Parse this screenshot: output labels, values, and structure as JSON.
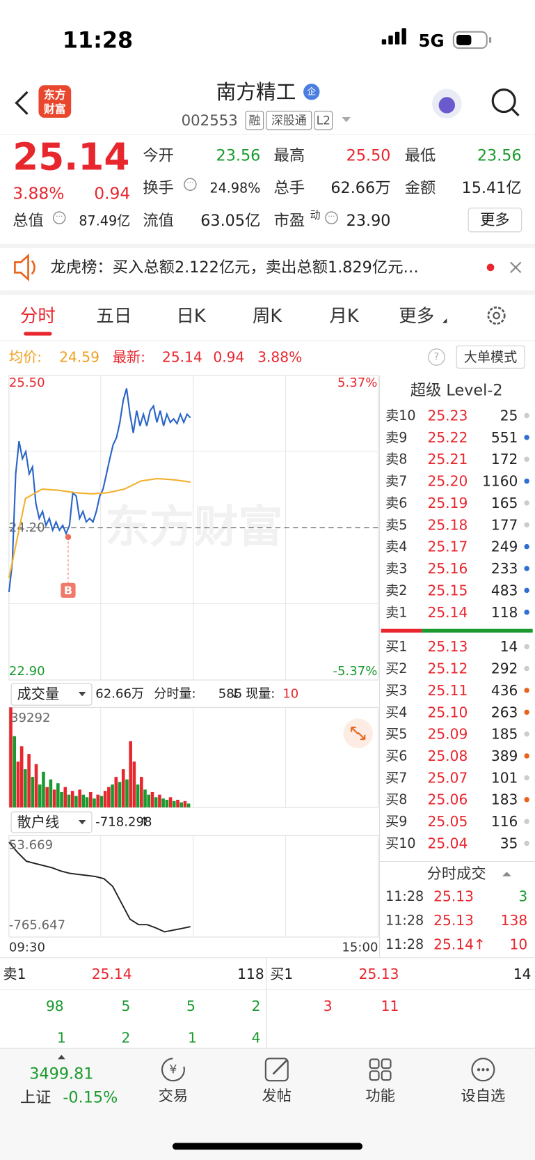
{
  "status": {
    "time": "11:28",
    "network": "5G"
  },
  "header": {
    "logo": [
      "东方",
      "财富"
    ],
    "title": "南方精工",
    "badge": "企",
    "code": "002553",
    "tags": [
      "融",
      "深股通",
      "L2"
    ]
  },
  "quote": {
    "price": "25.14",
    "change_pct": "3.88%",
    "change": "0.94",
    "more": "更多",
    "fields": [
      {
        "label": "今开",
        "value": "23.56"
      },
      {
        "label": "最高",
        "value": "25.50"
      },
      {
        "label": "最低",
        "value": "23.56"
      },
      {
        "label": "换手",
        "value": "24.98%"
      },
      {
        "label": "总手",
        "value": "62.66万"
      },
      {
        "label": "金额",
        "value": "15.41亿"
      },
      {
        "label": "总值",
        "value": "87.49亿"
      },
      {
        "label": "流值",
        "value": "63.05亿"
      },
      {
        "label": "市盈",
        "sup": "动",
        "value": "23.90"
      }
    ]
  },
  "news": {
    "text": "龙虎榜：买入总额2.122亿元，卖出总额1.829亿元…"
  },
  "tabs": [
    "分时",
    "五日",
    "日K",
    "周K",
    "月K",
    "更多"
  ],
  "info": {
    "avg_label": "均价:",
    "avg": "24.59",
    "last_label": "最新:",
    "last": "25.14",
    "change": "0.94",
    "pct": "3.88%",
    "mode": "大单模式"
  },
  "marker": "B",
  "watermark": "东方财富",
  "chart_data": [
    {
      "type": "line",
      "ylim": [
        22.9,
        25.5
      ],
      "yticks": [
        {
          "value": 25.5,
          "label": "25.50"
        },
        {
          "value": 24.2,
          "label": "24.20"
        },
        {
          "value": 22.9,
          "label": "22.90"
        }
      ],
      "y2lim": [
        -5.37,
        5.37
      ],
      "y2ticks": [
        {
          "value": 5.37,
          "label": "5.37%"
        },
        {
          "value": -5.37,
          "label": "-5.37%"
        }
      ],
      "xticks": [
        "09:30",
        "15:00"
      ],
      "series": [
        {
          "color": "#2a64c8",
          "values": [
            23.65,
            23.9,
            24.66,
            24.94,
            24.79,
            24.85,
            24.66,
            24.72,
            24.41,
            24.28,
            24.34,
            24.22,
            24.28,
            24.18,
            24.25,
            24.18,
            24.22,
            24.15,
            24.22,
            24.5,
            24.47,
            24.28,
            24.34,
            24.25,
            24.28,
            24.25,
            24.34,
            24.47,
            24.53,
            24.66,
            24.79,
            24.91,
            24.97,
            25.1,
            25.29,
            25.39,
            25.17,
            25.01,
            25.2,
            25.07,
            25.17,
            25.07,
            25.2,
            25.24,
            25.1,
            25.2,
            25.07,
            25.17,
            25.1,
            25.13,
            25.09,
            25.17,
            25.1,
            25.17,
            25.14
          ]
        },
        {
          "color": "#f2b02e",
          "values": [
            23.77,
            24.45,
            24.53,
            24.52,
            24.5,
            24.49,
            24.5,
            24.53,
            24.6,
            24.62,
            24.61,
            24.59
          ]
        }
      ]
    },
    {
      "type": "bar",
      "title": "成交量",
      "total": "62.66万",
      "period_label": "分时量:",
      "period": "585",
      "period_arrow": "↓",
      "now_label": "现量:",
      "now": "10",
      "ylim": [
        0,
        39292
      ],
      "yticks": [
        39292
      ],
      "values": [
        39292,
        28000,
        18000,
        24000,
        15000,
        21000,
        12000,
        17000,
        9000,
        14000,
        8000,
        11000,
        7000,
        9500,
        6000,
        8000,
        5000,
        6500,
        4500,
        7000,
        5000,
        4000,
        6000,
        3500,
        5000,
        4500,
        6500,
        8000,
        9000,
        12000,
        10000,
        15000,
        11000,
        26000,
        18000,
        9000,
        12000,
        7000,
        5000,
        6000,
        4000,
        5000,
        3500,
        3000,
        4000,
        2500,
        3000,
        2000,
        2500,
        1500
      ],
      "colors": [
        "#e8262e",
        "#1a9a2e",
        "#e8262e",
        "#e8262e",
        "#1a9a2e",
        "#e8262e",
        "#1a9a2e",
        "#e8262e",
        "#1a9a2e",
        "#1a9a2e",
        "#e8262e",
        "#1a9a2e",
        "#e8262e",
        "#1a9a2e",
        "#1a9a2e",
        "#e8262e",
        "#1a9a2e",
        "#e8262e",
        "#1a9a2e",
        "#e8262e",
        "#1a9a2e",
        "#1a9a2e",
        "#e8262e",
        "#1a9a2e",
        "#e8262e",
        "#1a9a2e",
        "#e8262e",
        "#e8262e",
        "#1a9a2e",
        "#e8262e",
        "#1a9a2e",
        "#e8262e",
        "#1a9a2e",
        "#e8262e",
        "#e8262e",
        "#1a9a2e",
        "#e8262e",
        "#1a9a2e",
        "#1a9a2e",
        "#e8262e",
        "#1a9a2e",
        "#e8262e",
        "#1a9a2e",
        "#1a9a2e",
        "#e8262e",
        "#1a9a2e",
        "#e8262e",
        "#1a9a2e",
        "#e8262e",
        "#1a9a2e"
      ]
    },
    {
      "type": "line",
      "title": "散户线",
      "current": "-718.298",
      "arrow": "↑",
      "ylim": [
        -765.647,
        53.669
      ],
      "yticks": [
        53.669,
        -765.647
      ],
      "color": "#222222",
      "values": [
        53.669,
        -40,
        -120,
        -140,
        -160,
        -180,
        -210,
        -230,
        -240,
        -250,
        -260,
        -280,
        -350,
        -500,
        -650,
        -700,
        -700,
        -730,
        -765.647,
        -750,
        -735,
        -718.298
      ]
    }
  ],
  "level2": {
    "title": "超级 Level-2",
    "asks": [
      {
        "label": "卖10",
        "price": "25.23",
        "volume": "25",
        "dot": "#cccccc"
      },
      {
        "label": "卖9",
        "price": "25.22",
        "volume": "551",
        "dot": "#2f6fd0"
      },
      {
        "label": "卖8",
        "price": "25.21",
        "volume": "172",
        "dot": "#cccccc"
      },
      {
        "label": "卖7",
        "price": "25.20",
        "volume": "1160",
        "dot": "#2f6fd0"
      },
      {
        "label": "卖6",
        "price": "25.19",
        "volume": "165",
        "dot": "#cccccc"
      },
      {
        "label": "卖5",
        "price": "25.18",
        "volume": "177",
        "dot": "#cccccc"
      },
      {
        "label": "卖4",
        "price": "25.17",
        "volume": "249",
        "dot": "#2f6fd0"
      },
      {
        "label": "卖3",
        "price": "25.16",
        "volume": "233",
        "dot": "#2f6fd0"
      },
      {
        "label": "卖2",
        "price": "25.15",
        "volume": "483",
        "dot": "#2f6fd0"
      },
      {
        "label": "卖1",
        "price": "25.14",
        "volume": "118",
        "dot": "#2f6fd0"
      }
    ],
    "bids": [
      {
        "label": "买1",
        "price": "25.13",
        "volume": "14",
        "dot": "#cccccc"
      },
      {
        "label": "买2",
        "price": "25.12",
        "volume": "292",
        "dot": "#cccccc"
      },
      {
        "label": "买3",
        "price": "25.11",
        "volume": "436",
        "dot": "#e8641e"
      },
      {
        "label": "买4",
        "price": "25.10",
        "volume": "263",
        "dot": "#e8641e"
      },
      {
        "label": "买5",
        "price": "25.09",
        "volume": "185",
        "dot": "#cccccc"
      },
      {
        "label": "买6",
        "price": "25.08",
        "volume": "389",
        "dot": "#e8641e"
      },
      {
        "label": "买7",
        "price": "25.07",
        "volume": "101",
        "dot": "#cccccc"
      },
      {
        "label": "买8",
        "price": "25.06",
        "volume": "183",
        "dot": "#e8641e"
      },
      {
        "label": "买9",
        "price": "25.05",
        "volume": "116",
        "dot": "#cccccc"
      },
      {
        "label": "买10",
        "price": "25.04",
        "volume": "35",
        "dot": "#cccccc"
      }
    ],
    "trades_title": "分时成交",
    "trades": [
      {
        "time": "11:28",
        "price": "25.13",
        "volume": "3"
      },
      {
        "time": "11:28",
        "price": "25.13",
        "volume": "138"
      },
      {
        "time": "11:28",
        "price": "25.14↑",
        "volume": "10"
      }
    ]
  },
  "orderbook": {
    "ask": {
      "label": "卖1",
      "price": "25.14",
      "volume": "118",
      "rows": [
        [
          "98",
          "5",
          "5",
          "2"
        ],
        [
          "1",
          "2",
          "1",
          "4"
        ]
      ]
    },
    "bid": {
      "label": "买1",
      "price": "25.13",
      "volume": "14",
      "rows": [
        [
          "3",
          "11"
        ]
      ]
    }
  },
  "nav": {
    "index_value": "3499.81",
    "index_name": "上证",
    "index_pct": "-0.15%",
    "items": [
      "交易",
      "发帖",
      "功能",
      "设自选"
    ]
  }
}
